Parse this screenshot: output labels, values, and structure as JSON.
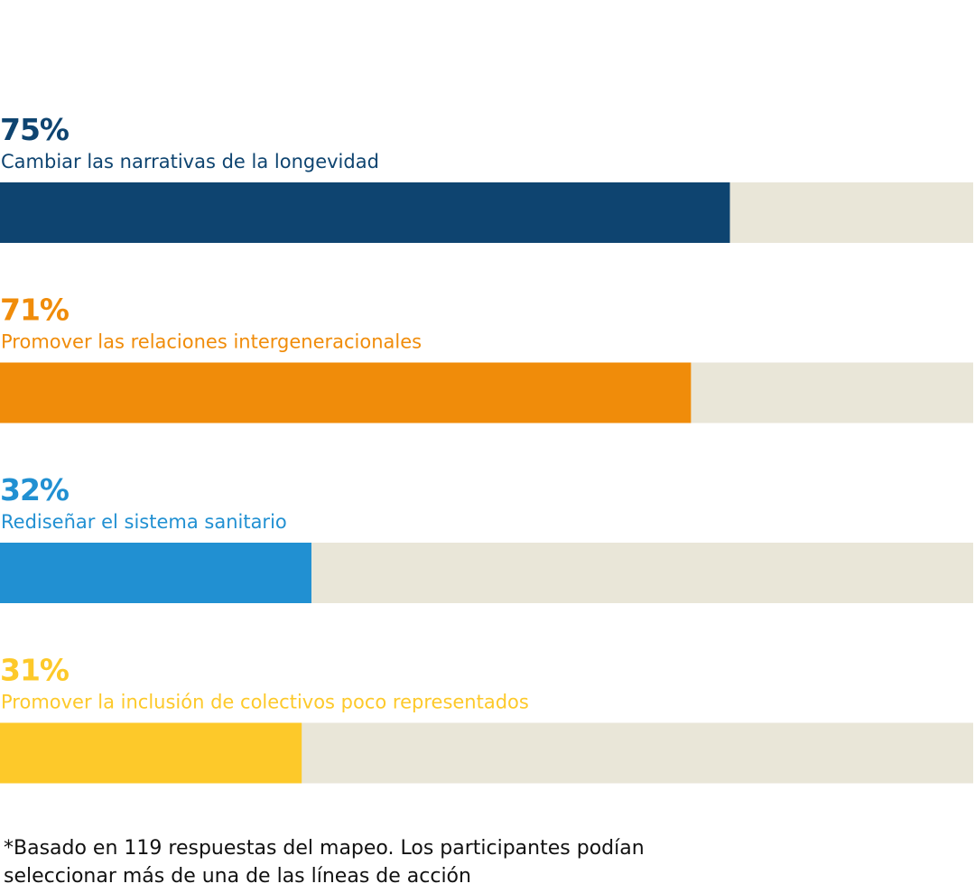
{
  "chart_data": {
    "type": "progress-bar",
    "categories": [
      "Cambiar las narrativas de la longevidad",
      "Promover las relaciones intergeneracionales",
      "Rediseñar el sistema sanitario",
      "Promover la inclusión de colectivos poco representados"
    ],
    "values": [
      75,
      71,
      32,
      31
    ],
    "value_labels": [
      "75%",
      "71%",
      "32%",
      "31%"
    ],
    "colors": [
      "#0e4470",
      "#f08c0a",
      "#2190d2",
      "#fdc92a"
    ],
    "track_color": "#e9e6d8",
    "xlim": [
      0,
      100
    ],
    "note": "*Basado en 119 respuestas del mapeo. Los participantes podían seleccionar más de una de las líneas de acción"
  }
}
